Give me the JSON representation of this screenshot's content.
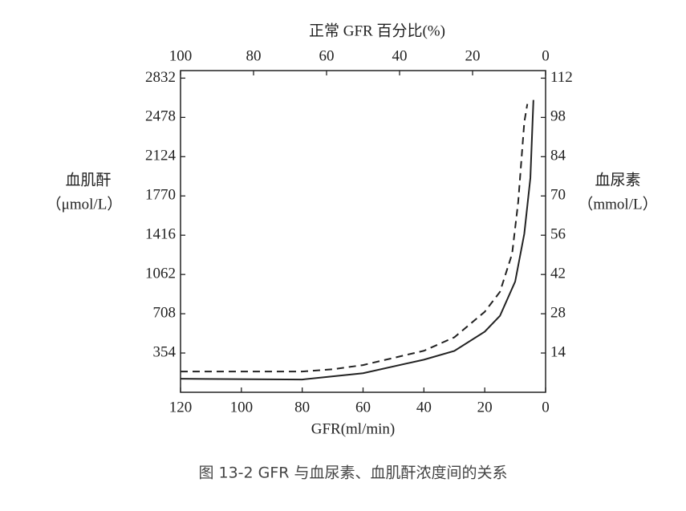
{
  "chart_data": {
    "type": "line",
    "top_axis_label": "正常 GFR 百分比(%)",
    "xlabel": "GFR(ml/min)",
    "ylabel": [
      "血肌酐",
      "（μmol/L）"
    ],
    "y2label": [
      "血尿素",
      "（mmol/L）"
    ],
    "caption": "图 13-2   GFR 与血尿素、血肌酐浓度间的关系",
    "xlim": [
      120,
      0
    ],
    "xticks": [
      120,
      100,
      80,
      60,
      40,
      20,
      0
    ],
    "x2lim": [
      100,
      0
    ],
    "x2ticks": [
      100,
      80,
      60,
      40,
      20,
      0
    ],
    "ylim": [
      0,
      2900
    ],
    "yticks": [
      354,
      708,
      1062,
      1416,
      1770,
      2124,
      2478,
      2832
    ],
    "y2lim": [
      0,
      114.7
    ],
    "y2ticks": [
      14,
      28,
      42,
      56,
      70,
      84,
      98,
      112
    ],
    "series": [
      {
        "color": "#222222",
        "dash": false,
        "x": [
          120,
          80,
          60,
          40,
          30,
          20,
          15,
          10,
          7,
          5,
          4
        ],
        "values": [
          122,
          115,
          172,
          294,
          373,
          546,
          689,
          998,
          1429,
          1932,
          2635
        ]
      },
      {
        "color": "#222222",
        "dash": true,
        "axis": "y2",
        "x": [
          120,
          80,
          70,
          60,
          40,
          30,
          20,
          15,
          11,
          9,
          7,
          6
        ],
        "values": [
          7.4,
          7.4,
          8.2,
          9.7,
          14.8,
          19.6,
          28.7,
          35.8,
          49.4,
          67.9,
          96.3,
          102.8
        ]
      }
    ]
  }
}
